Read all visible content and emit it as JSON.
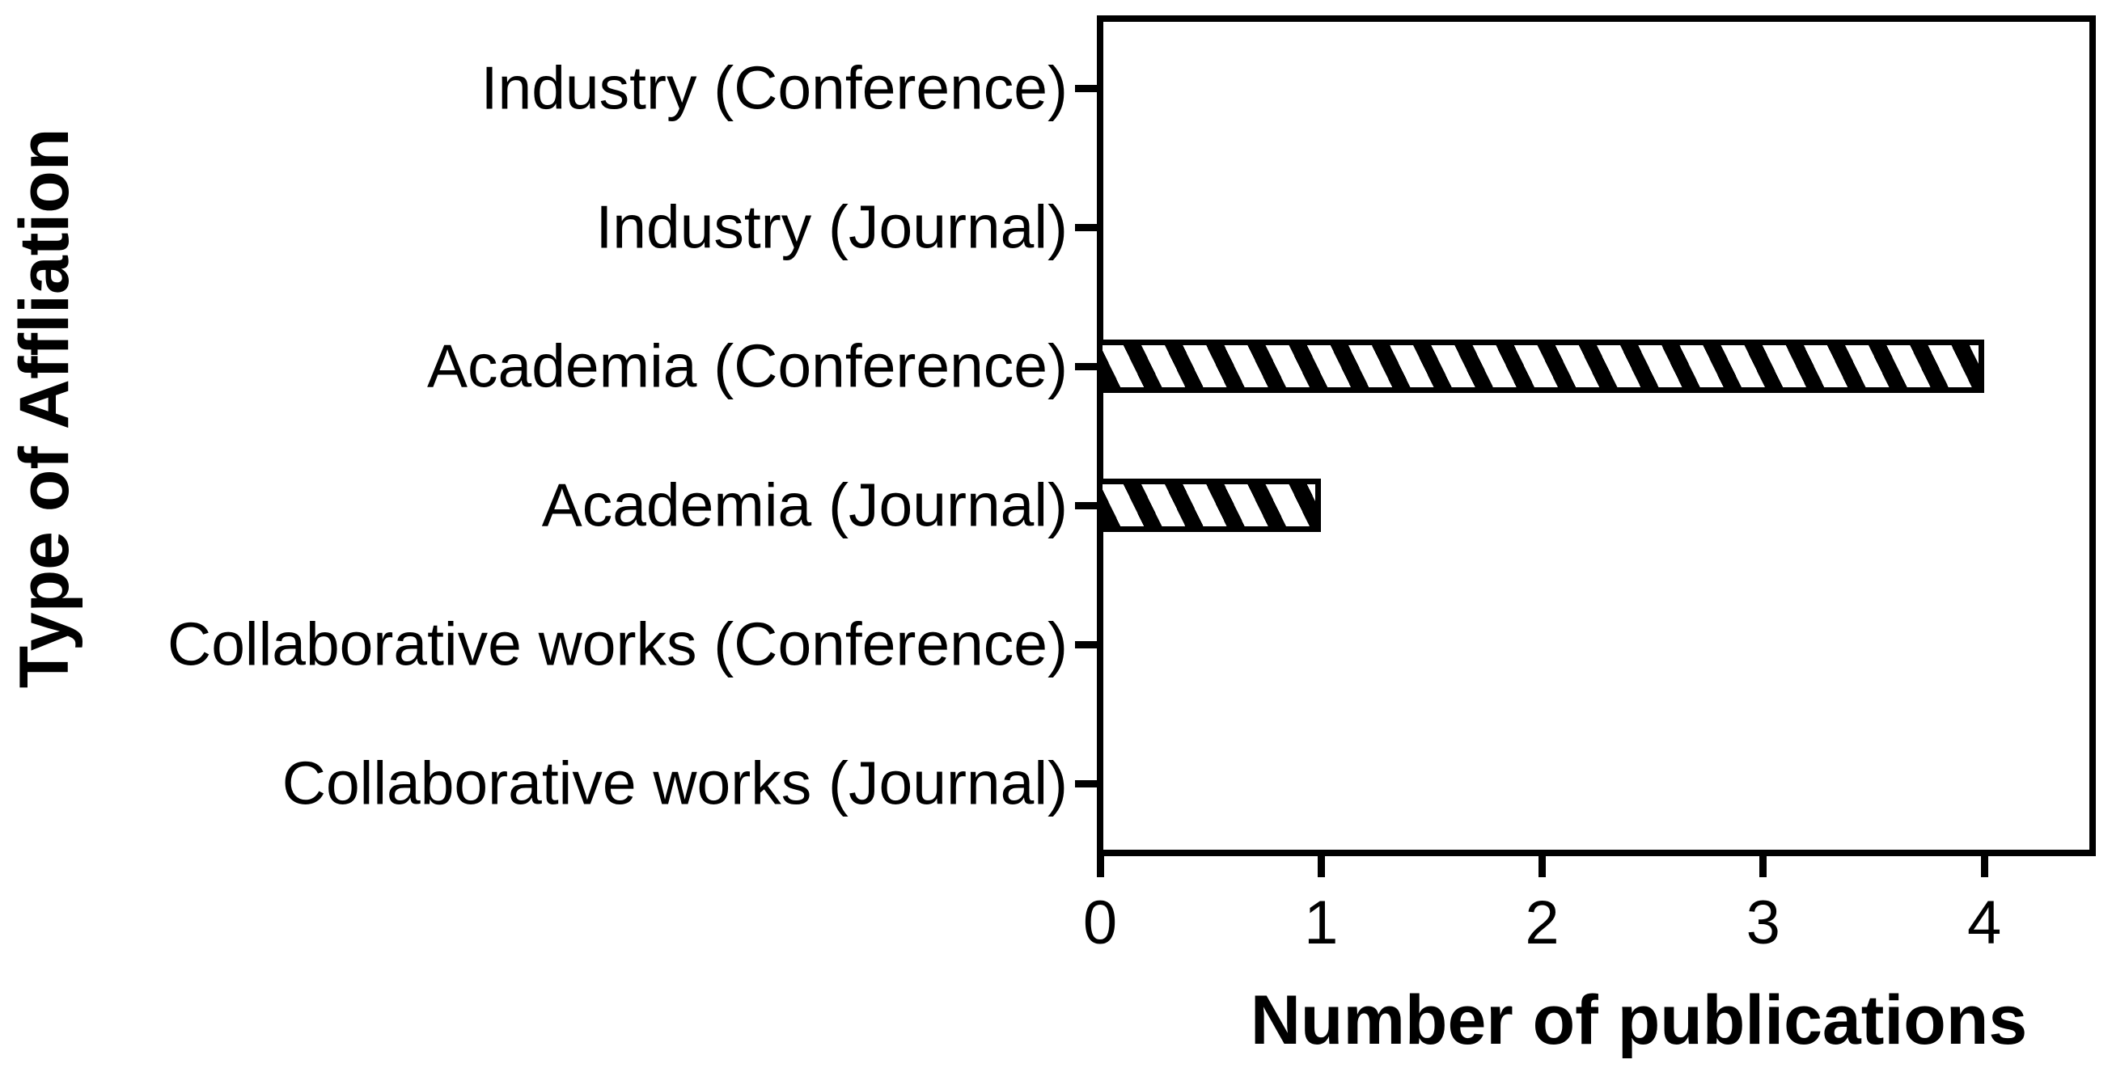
{
  "chart_data": {
    "type": "bar",
    "orientation": "horizontal",
    "categories": [
      "Industry (Conference)",
      "Industry (Journal)",
      "Academia (Conference)",
      "Academia (Journal)",
      "Collaborative works (Conference)",
      "Collaborative works (Journal)"
    ],
    "values": [
      0,
      0,
      4,
      1,
      0,
      0
    ],
    "xlabel": "Number of publications",
    "ylabel": "Type of Affliation",
    "xticks": [
      0,
      1,
      2,
      3,
      4
    ],
    "xlim": [
      0,
      4.49
    ],
    "grid": false,
    "legend": false,
    "colors": {
      "bar_fill": "#ffffff",
      "bar_hatch": "#000000",
      "bar_edge": "#000000",
      "axis": "#000000",
      "text": "#000000",
      "background": "#ffffff"
    },
    "bar_hatch_style": "diagonal-backslash"
  }
}
